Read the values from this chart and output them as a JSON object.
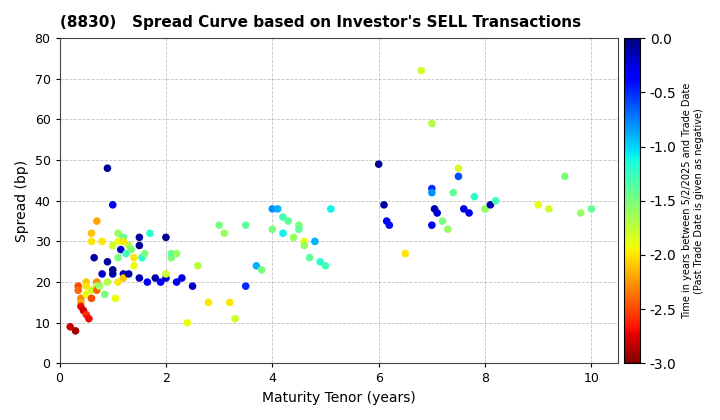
{
  "title": "(8830)   Spread Curve based on Investor's SELL Transactions",
  "xlabel": "Maturity Tenor (years)",
  "ylabel": "Spread (bp)",
  "colorbar_label_line1": "Time in years between 5/2/2025 and Trade Date",
  "colorbar_label_line2": "(Past Trade Date is given as negative)",
  "xlim": [
    0,
    10.5
  ],
  "ylim": [
    0,
    80
  ],
  "xticks": [
    0,
    2,
    4,
    6,
    8,
    10
  ],
  "yticks": [
    0,
    10,
    20,
    30,
    40,
    50,
    60,
    70,
    80
  ],
  "color_min": -3.0,
  "color_max": 0.0,
  "colorbar_ticks": [
    0.0,
    -0.5,
    -1.0,
    -1.5,
    -2.0,
    -2.5,
    -3.0
  ],
  "points": [
    [
      0.2,
      9,
      -2.8
    ],
    [
      0.3,
      8,
      -2.9
    ],
    [
      0.35,
      19,
      -2.5
    ],
    [
      0.35,
      18,
      -2.4
    ],
    [
      0.4,
      16,
      -2.3
    ],
    [
      0.4,
      15,
      -2.2
    ],
    [
      0.4,
      14,
      -2.7
    ],
    [
      0.45,
      13,
      -2.8
    ],
    [
      0.5,
      20,
      -2.1
    ],
    [
      0.5,
      19,
      -2.0
    ],
    [
      0.5,
      17,
      -1.9
    ],
    [
      0.5,
      12,
      -2.6
    ],
    [
      0.55,
      11,
      -2.7
    ],
    [
      0.6,
      32,
      -2.1
    ],
    [
      0.6,
      30,
      -2.0
    ],
    [
      0.6,
      18,
      -1.8
    ],
    [
      0.6,
      16,
      -2.5
    ],
    [
      0.65,
      26,
      -0.1
    ],
    [
      0.7,
      35,
      -2.2
    ],
    [
      0.7,
      20,
      -2.3
    ],
    [
      0.7,
      19,
      -1.7
    ],
    [
      0.7,
      18,
      -2.4
    ],
    [
      0.75,
      19,
      -1.6
    ],
    [
      0.8,
      22,
      -0.2
    ],
    [
      0.8,
      30,
      -2.0
    ],
    [
      0.85,
      17,
      -1.5
    ],
    [
      0.9,
      48,
      -0.05
    ],
    [
      0.9,
      20,
      -1.7
    ],
    [
      0.9,
      25,
      -0.1
    ],
    [
      1.0,
      39,
      -0.3
    ],
    [
      1.0,
      23,
      -0.05
    ],
    [
      1.0,
      29,
      -1.8
    ],
    [
      1.0,
      22,
      -0.1
    ],
    [
      1.05,
      16,
      -1.9
    ],
    [
      1.1,
      32,
      -1.6
    ],
    [
      1.1,
      30,
      -1.9
    ],
    [
      1.1,
      20,
      -2.0
    ],
    [
      1.1,
      26,
      -1.5
    ],
    [
      1.15,
      28,
      -0.2
    ],
    [
      1.2,
      31,
      -1.4
    ],
    [
      1.2,
      22,
      -0.15
    ],
    [
      1.2,
      21,
      -2.1
    ],
    [
      1.2,
      30,
      -2.0
    ],
    [
      1.25,
      27,
      -1.3
    ],
    [
      1.3,
      29,
      -1.7
    ],
    [
      1.3,
      22,
      -0.1
    ],
    [
      1.35,
      28,
      -1.5
    ],
    [
      1.4,
      24,
      -1.9
    ],
    [
      1.4,
      26,
      -2.0
    ],
    [
      1.5,
      31,
      -0.1
    ],
    [
      1.5,
      29,
      -0.05
    ],
    [
      1.5,
      21,
      -0.15
    ],
    [
      1.55,
      26,
      -1.2
    ],
    [
      1.6,
      27,
      -1.5
    ],
    [
      1.65,
      20,
      -0.3
    ],
    [
      1.7,
      32,
      -1.2
    ],
    [
      1.8,
      21,
      -0.1
    ],
    [
      1.9,
      20,
      -0.3
    ],
    [
      2.0,
      31,
      -0.05
    ],
    [
      2.0,
      21,
      -0.2
    ],
    [
      2.0,
      22,
      -1.8
    ],
    [
      2.1,
      26,
      -1.5
    ],
    [
      2.1,
      27,
      -1.4
    ],
    [
      2.2,
      27,
      -1.6
    ],
    [
      2.2,
      20,
      -0.3
    ],
    [
      2.3,
      21,
      -0.25
    ],
    [
      2.4,
      10,
      -1.9
    ],
    [
      2.5,
      19,
      -0.2
    ],
    [
      2.6,
      24,
      -1.7
    ],
    [
      2.8,
      15,
      -2.0
    ],
    [
      3.0,
      34,
      -1.5
    ],
    [
      3.1,
      32,
      -1.6
    ],
    [
      3.2,
      15,
      -2.0
    ],
    [
      3.3,
      11,
      -1.8
    ],
    [
      3.5,
      19,
      -0.5
    ],
    [
      3.5,
      34,
      -1.4
    ],
    [
      3.7,
      24,
      -0.9
    ],
    [
      3.8,
      23,
      -1.5
    ],
    [
      4.0,
      38,
      -0.8
    ],
    [
      4.0,
      33,
      -1.5
    ],
    [
      4.1,
      38,
      -0.9
    ],
    [
      4.2,
      36,
      -1.3
    ],
    [
      4.2,
      32,
      -1.1
    ],
    [
      4.3,
      35,
      -1.4
    ],
    [
      4.4,
      31,
      -1.6
    ],
    [
      4.5,
      34,
      -1.5
    ],
    [
      4.5,
      33,
      -1.4
    ],
    [
      4.6,
      30,
      -1.9
    ],
    [
      4.6,
      29,
      -1.6
    ],
    [
      4.7,
      26,
      -1.4
    ],
    [
      4.8,
      30,
      -0.9
    ],
    [
      4.9,
      25,
      -1.2
    ],
    [
      5.0,
      24,
      -1.3
    ],
    [
      5.1,
      38,
      -1.1
    ],
    [
      6.0,
      49,
      -0.05
    ],
    [
      6.1,
      39,
      -0.1
    ],
    [
      6.15,
      35,
      -0.3
    ],
    [
      6.2,
      34,
      -0.4
    ],
    [
      6.5,
      27,
      -2.0
    ],
    [
      6.8,
      72,
      -1.8
    ],
    [
      7.0,
      43,
      -0.5
    ],
    [
      7.0,
      42,
      -0.8
    ],
    [
      7.0,
      59,
      -1.7
    ],
    [
      7.0,
      34,
      -0.3
    ],
    [
      7.05,
      38,
      -0.15
    ],
    [
      7.1,
      37,
      -0.2
    ],
    [
      7.2,
      35,
      -1.5
    ],
    [
      7.3,
      33,
      -1.6
    ],
    [
      7.4,
      42,
      -1.4
    ],
    [
      7.5,
      48,
      -1.8
    ],
    [
      7.5,
      46,
      -0.6
    ],
    [
      7.6,
      38,
      -0.25
    ],
    [
      7.7,
      37,
      -0.3
    ],
    [
      7.8,
      41,
      -1.2
    ],
    [
      8.0,
      38,
      -1.5
    ],
    [
      8.0,
      38,
      -1.6
    ],
    [
      8.1,
      39,
      -0.15
    ],
    [
      8.2,
      40,
      -1.3
    ],
    [
      9.0,
      39,
      -1.9
    ],
    [
      9.2,
      38,
      -1.8
    ],
    [
      9.5,
      46,
      -1.5
    ],
    [
      9.8,
      37,
      -1.6
    ],
    [
      10.0,
      38,
      -1.4
    ]
  ],
  "background_color": "#ffffff",
  "grid_color": "#aaaaaa",
  "marker_size": 30
}
